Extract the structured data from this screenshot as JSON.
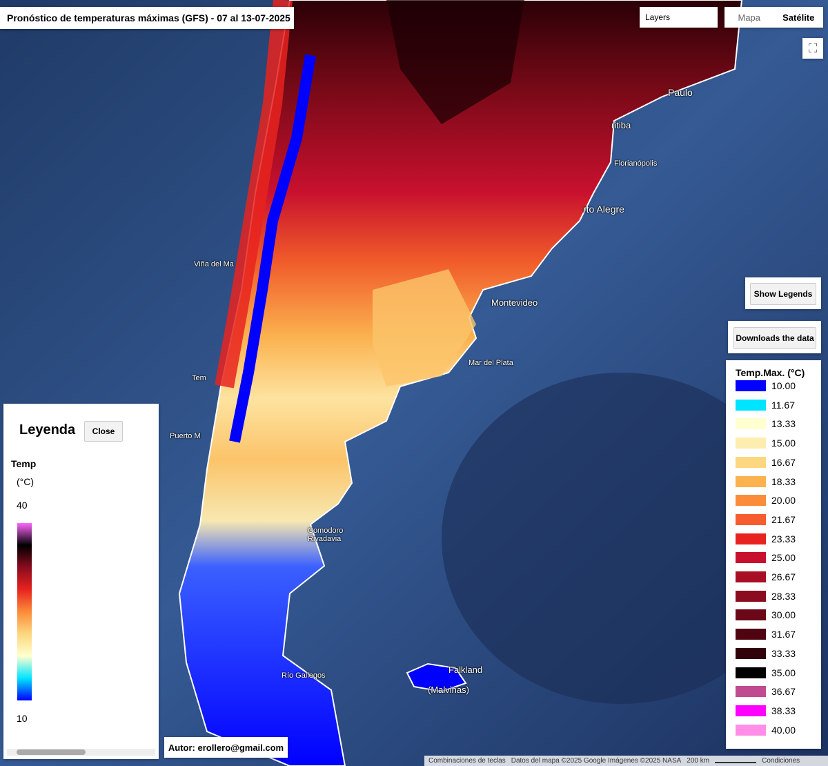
{
  "title": "Pronóstico de temperaturas máximas (GFS) - 07 al 13-07-2025",
  "controls": {
    "layers": "Layers",
    "map": "Mapa",
    "satellite": "Satélite",
    "show_legends": "Show Legends",
    "download": "Downloads the data"
  },
  "legend_panel": {
    "title": "Leyenda",
    "close": "Close",
    "variable": "Temp",
    "unit": "(°C)",
    "max": "40",
    "min": "10",
    "gradient": [
      "#ff66ff",
      "#000000",
      "#8a0c1e",
      "#e8231f",
      "#fb8c3a",
      "#fcd77f",
      "#ffffd0",
      "#00e5ff",
      "#0000ff"
    ]
  },
  "class_legend": {
    "title": "Temp.Max. (°C)",
    "items": [
      {
        "label": "10.00",
        "color": "#0000ff"
      },
      {
        "label": "11.67",
        "color": "#00e5ff"
      },
      {
        "label": "13.33",
        "color": "#ffffd0"
      },
      {
        "label": "15.00",
        "color": "#fdeeb0"
      },
      {
        "label": "16.67",
        "color": "#fcd77f"
      },
      {
        "label": "18.33",
        "color": "#fbb24f"
      },
      {
        "label": "20.00",
        "color": "#fb8c3a"
      },
      {
        "label": "21.67",
        "color": "#f75c2f"
      },
      {
        "label": "23.33",
        "color": "#e8231f"
      },
      {
        "label": "25.00",
        "color": "#c8102e"
      },
      {
        "label": "26.67",
        "color": "#a80f25"
      },
      {
        "label": "28.33",
        "color": "#8a0c1e"
      },
      {
        "label": "30.00",
        "color": "#6b0716"
      },
      {
        "label": "31.67",
        "color": "#500411"
      },
      {
        "label": "33.33",
        "color": "#32020a"
      },
      {
        "label": "35.00",
        "color": "#000000"
      },
      {
        "label": "36.67",
        "color": "#c14b91"
      },
      {
        "label": "38.33",
        "color": "#ff00ff"
      },
      {
        "label": "40.00",
        "color": "#ff8ee8"
      }
    ]
  },
  "author": "Autor: erollero@gmail.com",
  "map_labels": [
    "Paulo",
    "ritiba",
    "Florianópolis",
    "rto Alegre",
    "Viña del Ma",
    "Montevideo",
    "Mar del Plata",
    "Tem",
    "Puerto M",
    "Comodoro",
    "Rivadavia",
    "Río Gallegos",
    "Falkland",
    "(Malvinas)"
  ],
  "attribution": {
    "shortcuts": "Combinaciones de teclas",
    "data": "Datos del mapa ©2025 Google Imágenes ©2025 NASA",
    "scale": "200 km",
    "terms": "Condiciones"
  }
}
